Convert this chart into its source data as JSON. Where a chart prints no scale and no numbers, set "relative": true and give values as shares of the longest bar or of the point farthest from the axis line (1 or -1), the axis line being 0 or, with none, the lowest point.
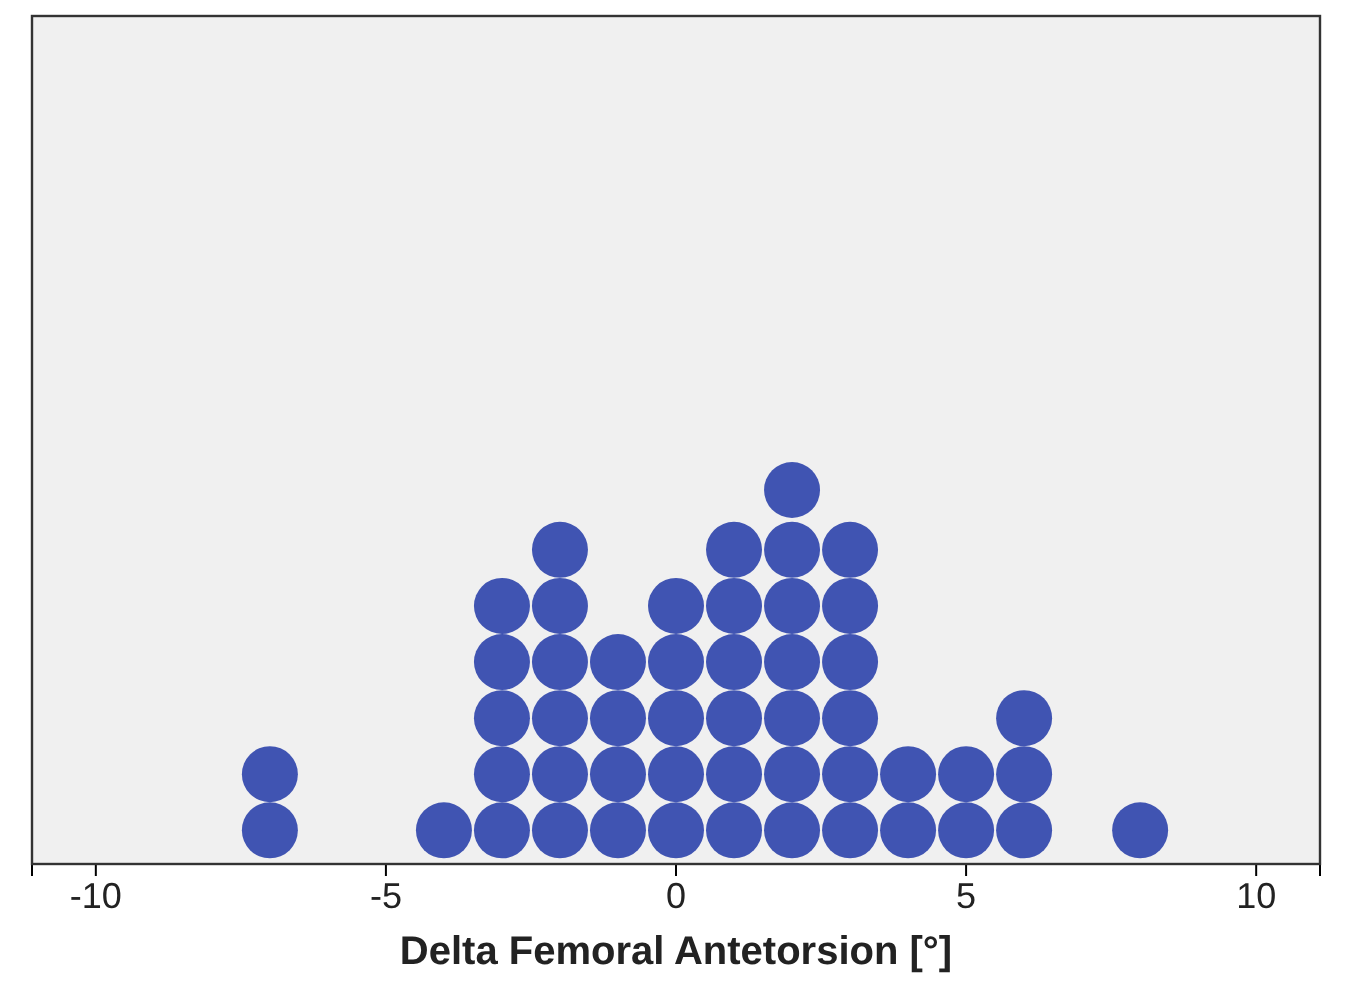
{
  "chart_data": {
    "type": "scatter",
    "xlabel": "Delta Femoral Antetorsion [°]",
    "xlim": [
      -11.1,
      11.1
    ],
    "xticks": [
      -10,
      -5,
      0,
      5,
      10
    ],
    "relative": true,
    "tick_labels": "x",
    "grid": false,
    "marker": "circle",
    "series": [
      {
        "color": "#4054b2",
        "x": [
          -7,
          -7,
          -4,
          -3,
          -3,
          -3,
          -3,
          -3,
          -2,
          -2,
          -2,
          -2,
          -2,
          -2,
          -1,
          -1,
          -1,
          -1,
          0,
          0,
          0,
          0,
          0,
          1,
          1,
          1,
          1,
          1,
          1,
          2,
          2,
          2,
          2,
          2,
          2,
          2,
          3,
          3,
          3,
          3,
          3,
          3,
          4,
          4,
          5,
          5,
          6,
          6,
          6,
          8
        ],
        "values": [
          0.09,
          0.24,
          0.09,
          0.09,
          0.24,
          0.39,
          0.54,
          0.69,
          0.09,
          0.24,
          0.39,
          0.54,
          0.69,
          0.84,
          0.09,
          0.24,
          0.39,
          0.54,
          0.09,
          0.24,
          0.39,
          0.54,
          0.69,
          0.09,
          0.24,
          0.39,
          0.54,
          0.69,
          0.84,
          0.09,
          0.24,
          0.39,
          0.54,
          0.69,
          0.84,
          1,
          0.09,
          0.24,
          0.39,
          0.54,
          0.69,
          0.84,
          0.09,
          0.24,
          0.09,
          0.24,
          0.09,
          0.24,
          0.39,
          0.09
        ]
      }
    ]
  }
}
